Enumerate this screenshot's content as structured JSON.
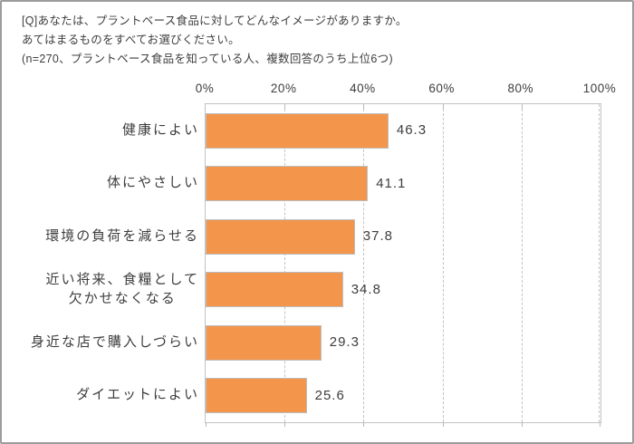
{
  "title": {
    "line1": "[Q]あなたは、プラントベース食品に対してどんなイメージがありますか。",
    "line2": "あてはまるものをすべてお選びください。",
    "line3": "(n=270、プラントベース食品を知っている人、複数回答のうち上位6つ)"
  },
  "chart_data": {
    "type": "bar",
    "orientation": "horizontal",
    "categories": [
      "健康によい",
      "体にやさしい",
      "環境の負荷を減らせる",
      "近い将来、食糧として\n欠かせなくなる",
      "身近な店で購入しづらい",
      "ダイエットによい"
    ],
    "values": [
      46.3,
      41.1,
      37.8,
      34.8,
      29.3,
      25.6
    ],
    "value_labels": [
      "46.3",
      "41.1",
      "37.8",
      "34.8",
      "29.3",
      "25.6"
    ],
    "x_ticks": [
      "0%",
      "20%",
      "40%",
      "60%",
      "80%",
      "100%"
    ],
    "xlim": [
      0,
      100
    ],
    "grid": "vertical-dashed",
    "legend": "none",
    "bar_color": "#f3964c",
    "bar_border_color": "#bdbdbd",
    "grid_color": "#c3c3c3",
    "axis_border_color": "#c2c2c2",
    "frame_border_color": "#9c9c9c",
    "text_color": "#3d3d3d"
  }
}
